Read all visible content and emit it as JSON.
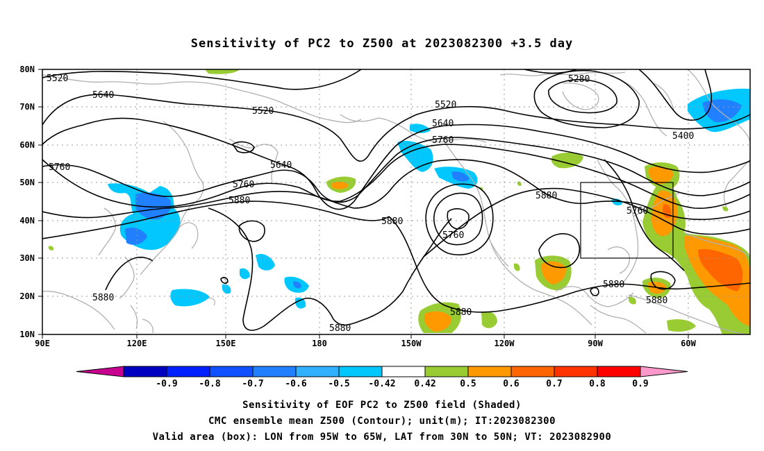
{
  "title": "Sensitivity of PC2 to Z500 at 2023082300 +3.5 day",
  "lon_labels": [
    "90E",
    "120E",
    "150E",
    "180",
    "150W",
    "120W",
    "90W",
    "60W"
  ],
  "lat_labels": [
    "80N",
    "70N",
    "60N",
    "50N",
    "40N",
    "30N",
    "20N",
    "10N"
  ],
  "contour_labels": [
    "5520",
    "5640",
    "5520",
    "5760",
    "5640",
    "5760",
    "5880",
    "5520",
    "5640",
    "5760",
    "5880",
    "5760",
    "5880",
    "5280",
    "5400",
    "5760",
    "5880",
    "5880",
    "5880",
    "5880",
    "5880"
  ],
  "colorbar": {
    "ticks": [
      "-0.9",
      "-0.8",
      "-0.7",
      "-0.6",
      "-0.5",
      "-0.42",
      "0.42",
      "0.5",
      "0.6",
      "0.7",
      "0.8",
      "0.9"
    ],
    "colors": [
      "#c80090",
      "#0000c0",
      "#0020ff",
      "#1050ff",
      "#2080ff",
      "#30b0ff",
      "#00c8ff",
      "#ffffff",
      "#99cc33",
      "#ff9900",
      "#ff6600",
      "#ff3300",
      "#ff0000",
      "#ff99cc"
    ]
  },
  "captions": [
    "Sensitivity of EOF PC2 to Z500 field (Shaded)",
    "CMC ensemble mean Z500 (Contour); unit(m); IT:2023082300",
    "Valid area (box): LON from 95W to 65W, LAT from 30N to 50N; VT: 2023082900"
  ],
  "colors": {
    "contour": "#000000",
    "coast": "#b0b0b0",
    "grid": "#999999",
    "positive_green": "#99cc33",
    "positive_orange": "#ff9900",
    "positive_dark_orange": "#ff6600",
    "positive_red": "#ff3300",
    "negative_light_blue": "#00c8ff",
    "negative_blue": "#2080ff"
  }
}
